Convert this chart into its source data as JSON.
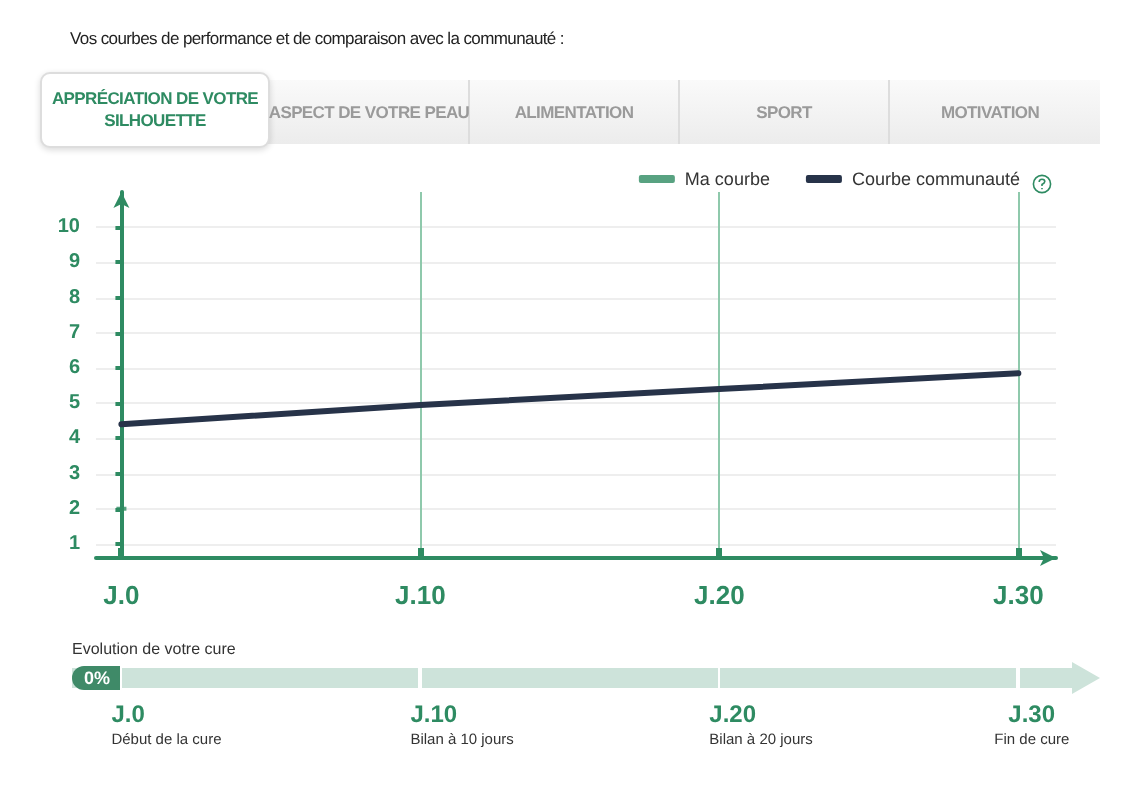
{
  "chart_data": {
    "type": "line",
    "title": "Vos courbes de performance et de comparaison avec la communauté :",
    "categories": [
      "J.0",
      "J.10",
      "J.20",
      "J.30"
    ],
    "series": [
      {
        "name": "Ma courbe",
        "type": "scatter",
        "color": "#2e8b62",
        "values": [
          2,
          null,
          null,
          null
        ]
      },
      {
        "name": "Courbe communauté",
        "color": "#273349",
        "values": [
          4.4,
          4.95,
          5.4,
          5.85
        ]
      }
    ],
    "ylim": [
      0.6,
      11
    ],
    "yticks": [
      1,
      2,
      3,
      4,
      5,
      6,
      7,
      8,
      9,
      10
    ],
    "grid": true,
    "legend": "top right",
    "annotations": [
      "APPRÉCIATION DE VOTRE SILHOUETTE",
      "ASPECT DE VOTRE PEAU",
      "ALIMENTATION",
      "SPORT",
      "MOTIVATION",
      "Evolution de votre cure",
      "0%",
      "J.0",
      "Début de la cure",
      "J.10",
      "Bilan à 10 jours",
      "J.20",
      "Bilan à 20 jours",
      "J.30",
      "Fin de cure"
    ]
  }
}
